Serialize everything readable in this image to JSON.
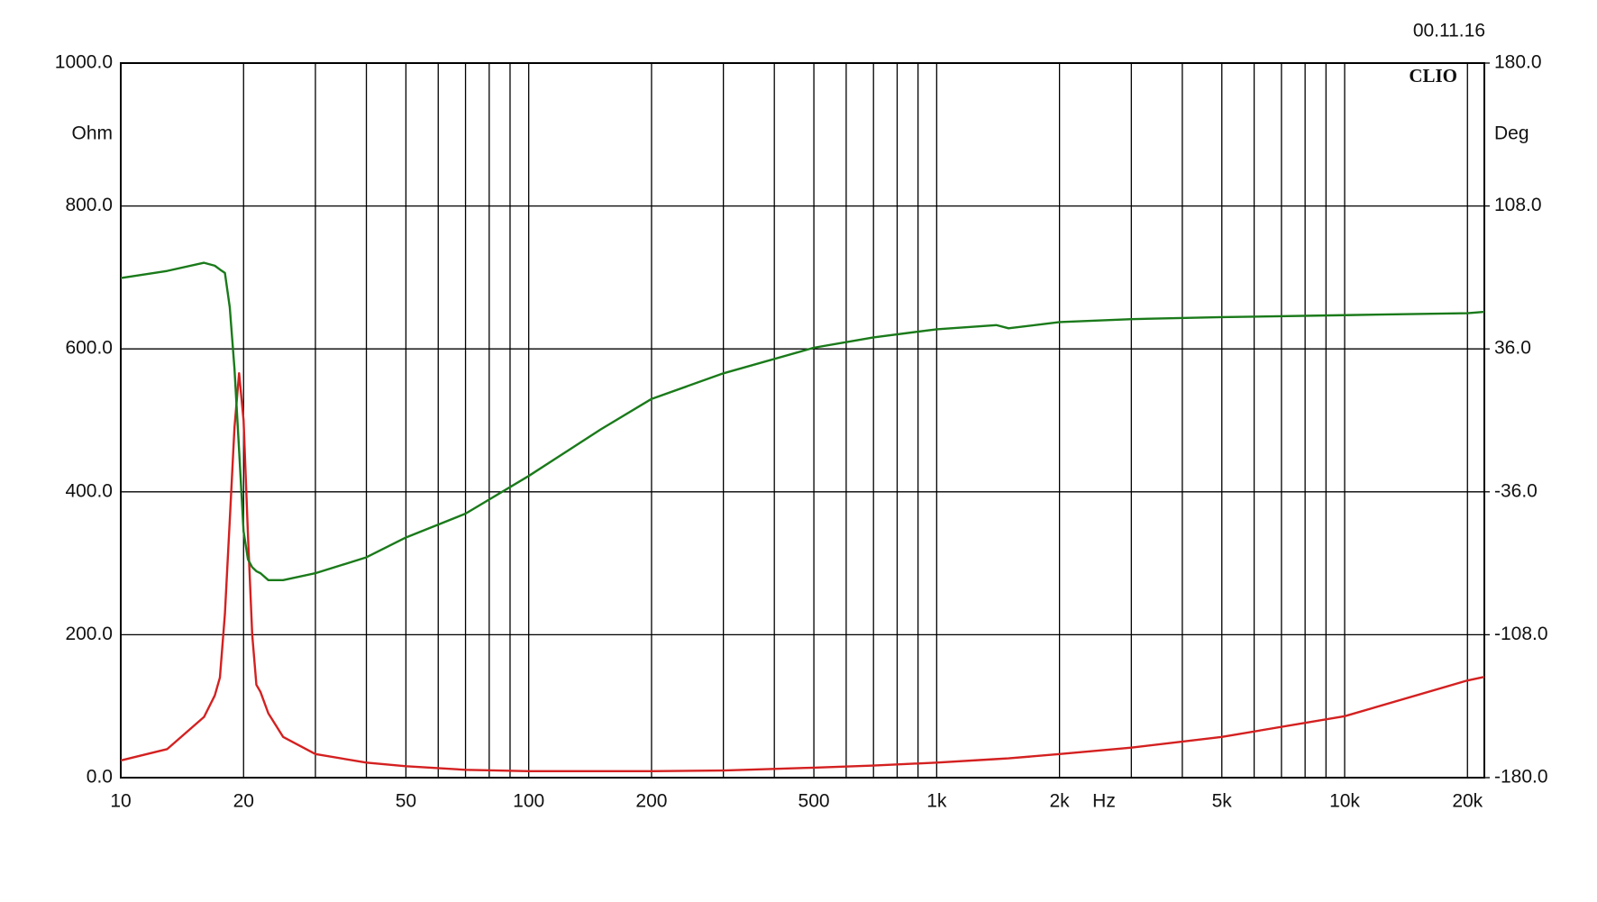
{
  "chart_data": {
    "type": "line",
    "xscale": "log",
    "grid": true,
    "date": "00.11.16",
    "brand": "CLIO",
    "ylabel": "Ohm",
    "y2label": "Deg",
    "xlabel": "Hz",
    "x": [
      10,
      13,
      16,
      17,
      17.5,
      18,
      18.5,
      19,
      19.5,
      20,
      20.5,
      21,
      21.5,
      22,
      23,
      25,
      30,
      40,
      50,
      70,
      100,
      150,
      200,
      300,
      500,
      700,
      1000,
      1400,
      1500,
      2000,
      3000,
      5000,
      10000,
      20000,
      22000
    ],
    "series": [
      {
        "color": "#d42020",
        "axis": "y",
        "values": [
          24,
          40,
          85,
          115,
          140,
          229,
          360,
          490,
          566,
          500,
          340,
          200,
          130,
          120,
          90,
          57,
          33,
          21,
          16,
          11,
          9,
          9,
          9,
          10,
          14,
          17,
          21,
          26,
          27,
          33,
          42,
          57,
          86,
          136,
          141
        ]
      },
      {
        "color": "#1a7a1a",
        "axis": "y2",
        "values": [
          71.7,
          75.3,
          79.4,
          77.9,
          76,
          74.3,
          57,
          26,
          -15,
          -56,
          -70,
          -74,
          -76,
          -77,
          -80.5,
          -80.5,
          -77,
          -69,
          -59,
          -47,
          -28,
          -4.6,
          10.8,
          23.7,
          36.6,
          41.8,
          45.9,
          48,
          46.4,
          49.5,
          51,
          52,
          53,
          54,
          54.7
        ]
      }
    ],
    "xlim": [
      10,
      22000
    ],
    "xticks": [
      10,
      20,
      50,
      100,
      200,
      500,
      {
        "value": 1000,
        "label": "1k"
      },
      {
        "value": 2000,
        "label": "2k"
      },
      {
        "value": 5000,
        "label": "5k"
      },
      {
        "value": 10000,
        "label": "10k"
      },
      {
        "value": 20000,
        "label": "20k"
      }
    ],
    "x_minor_ticks": [
      30,
      40,
      60,
      70,
      80,
      90,
      300,
      400,
      600,
      700,
      800,
      900,
      3000,
      4000,
      6000,
      7000,
      8000,
      9000
    ],
    "ylim": [
      0,
      1000
    ],
    "yticks": [
      {
        "value": 0,
        "label": "0.0"
      },
      {
        "value": 200,
        "label": "200.0"
      },
      {
        "value": 400,
        "label": "400.0"
      },
      {
        "value": 600,
        "label": "600.0"
      },
      {
        "value": 800,
        "label": "800.0"
      },
      {
        "value": 1000,
        "label": "1000.0"
      }
    ],
    "y2lim": [
      -180,
      180
    ],
    "y2ticks": [
      {
        "value": -180,
        "label": "-180.0"
      },
      {
        "value": -108,
        "label": "-108.0"
      },
      {
        "value": -36,
        "label": "-36.0"
      },
      {
        "value": 36,
        "label": "36.0"
      },
      {
        "value": 108,
        "label": "108.0"
      },
      {
        "value": 180,
        "label": "180.0"
      }
    ]
  }
}
